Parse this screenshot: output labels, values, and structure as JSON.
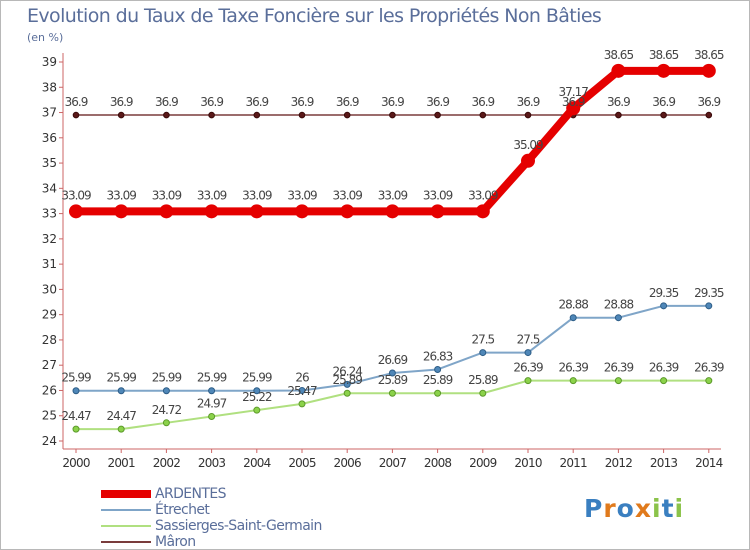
{
  "chart_data": {
    "type": "line",
    "title": "Evolution du Taux de Taxe Foncière sur les Propriétés Non Bâties",
    "ylabel": "(en %)",
    "xlabel": "",
    "x": [
      "2000",
      "2001",
      "2002",
      "2003",
      "2004",
      "2005",
      "2006",
      "2007",
      "2008",
      "2009",
      "2010",
      "2011",
      "2012",
      "2013",
      "2014"
    ],
    "yticks": [
      "24",
      "25",
      "26",
      "27",
      "28",
      "29",
      "30",
      "31",
      "32",
      "33",
      "34",
      "35",
      "36",
      "37",
      "38",
      "39"
    ],
    "ylim": [
      24,
      39
    ],
    "grid": false,
    "legend_position": "bottom-left",
    "series": [
      {
        "name": "ARDENTES",
        "color": "#e50000",
        "values": [
          33.09,
          33.09,
          33.09,
          33.09,
          33.09,
          33.09,
          33.09,
          33.09,
          33.09,
          33.09,
          35.09,
          37.17,
          38.65,
          38.65,
          38.65
        ],
        "labels": [
          "33.09",
          "33.09",
          "33.09",
          "33.09",
          "33.09",
          "33.09",
          "33.09",
          "33.09",
          "33.09",
          "33.09",
          "35.09",
          "37.17",
          "38.65",
          "38.65",
          "38.65"
        ]
      },
      {
        "name": "Étrechet",
        "color": "#7fa5c8",
        "values": [
          25.99,
          25.99,
          25.99,
          25.99,
          25.99,
          26,
          26.24,
          26.69,
          26.83,
          27.5,
          27.5,
          28.88,
          28.88,
          29.35,
          29.35
        ],
        "labels": [
          "25.99",
          "25.99",
          "25.99",
          "25.99",
          "25.99",
          "26",
          "26.24",
          "26.69",
          "26.83",
          "27.5",
          "27.5",
          "28.88",
          "28.88",
          "29.35",
          "29.35"
        ]
      },
      {
        "name": "Sassierges-Saint-Germain",
        "color": "#b0e080",
        "values": [
          24.47,
          24.47,
          24.72,
          24.97,
          25.22,
          25.47,
          25.89,
          25.89,
          25.89,
          25.89,
          26.39,
          26.39,
          26.39,
          26.39,
          26.39
        ],
        "labels": [
          "24.47",
          "24.47",
          "24.72",
          "24.97",
          "25.22",
          "25.47",
          "25.89",
          "25.89",
          "25.89",
          "25.89",
          "26.39",
          "26.39",
          "26.39",
          "26.39",
          "26.39"
        ]
      },
      {
        "name": "Mâron",
        "color": "#7a3c3c",
        "values": [
          36.9,
          36.9,
          36.9,
          36.9,
          36.9,
          36.9,
          36.9,
          36.9,
          36.9,
          36.9,
          36.9,
          36.9,
          36.9,
          36.9,
          36.9
        ],
        "labels": [
          "36.9",
          "36.9",
          "36.9",
          "36.9",
          "36.9",
          "36.9",
          "36.9",
          "36.9",
          "36.9",
          "36.9",
          "36.9",
          "36.9",
          "36.9",
          "36.9",
          "36.9"
        ]
      }
    ]
  },
  "logo": {
    "letters": [
      "P",
      "r",
      "o",
      "x",
      "i",
      "t",
      "i"
    ]
  }
}
